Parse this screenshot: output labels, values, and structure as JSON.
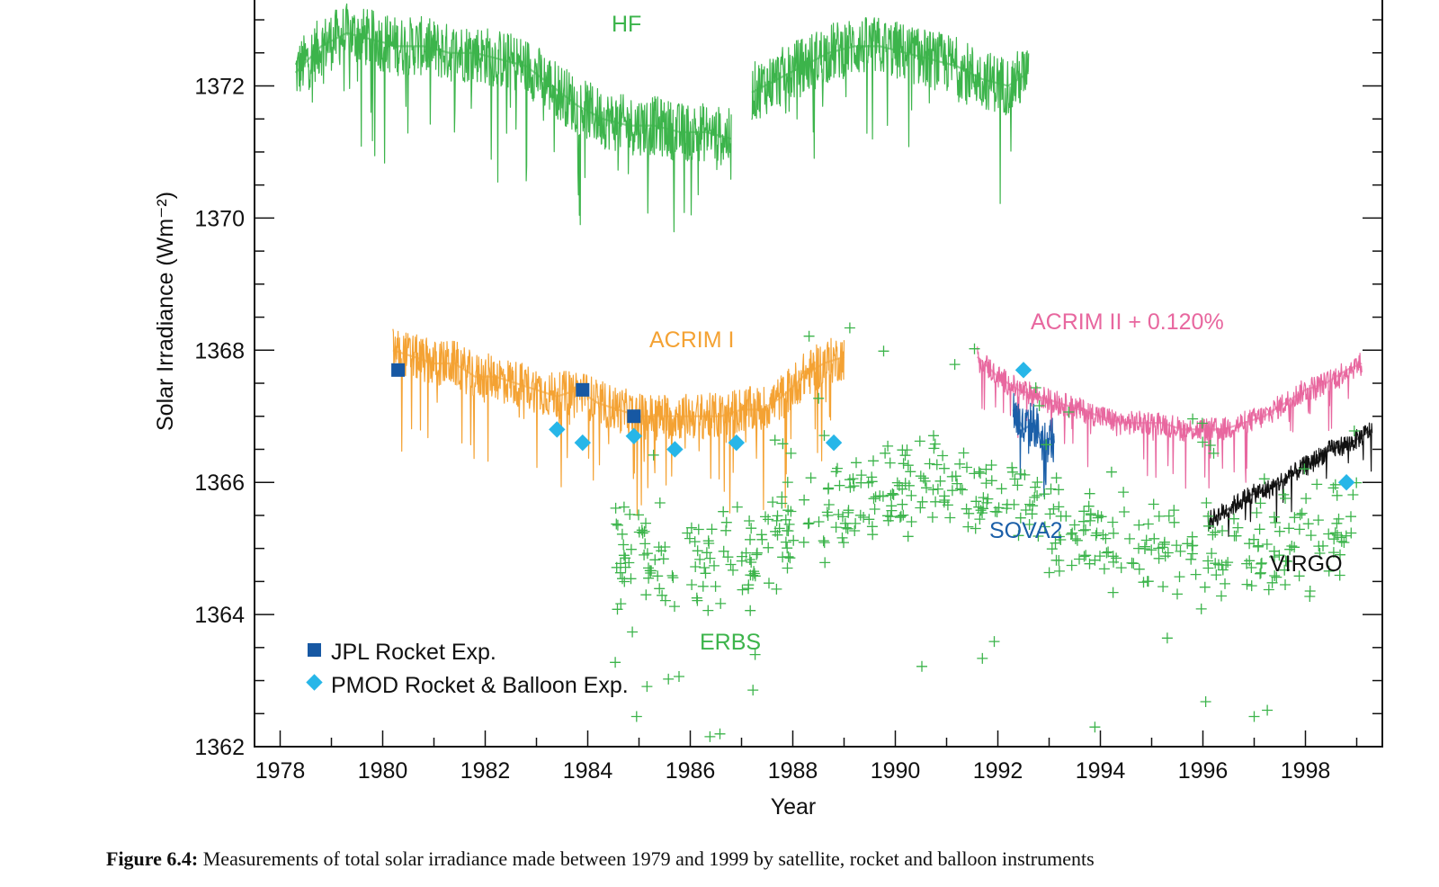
{
  "chart_data": {
    "type": "line",
    "title": "",
    "xlabel": "Year",
    "ylabel": "Solar Irradiance (Wm⁻²)",
    "xlim": [
      1977.5,
      1999.5
    ],
    "ylim": [
      1362,
      1373.3
    ],
    "x_ticks": [
      "1978",
      "1980",
      "1982",
      "1984",
      "1986",
      "1988",
      "1990",
      "1992",
      "1994",
      "1996",
      "1998"
    ],
    "y_ticks": [
      "1362",
      "1364",
      "1366",
      "1368",
      "1370",
      "1372"
    ],
    "colors": {
      "HF": "#3cb44b",
      "ERBS": "#3cb44b",
      "ACRIM I": "#f4a233",
      "ACRIM II": "#e8679f",
      "SOVA2": "#1b5fa8",
      "VIRGO": "#111111",
      "JPL": "#1758a3",
      "PMOD": "#27b6e8"
    },
    "series_labels": {
      "HF": "HF",
      "ACRIM I": "ACRIM I",
      "ACRIM II": "ACRIM II + 0.120%",
      "ERBS": "ERBS",
      "SOVA2": "SOVA2",
      "VIRGO": "VIRGO"
    },
    "series": [
      {
        "key": "HF",
        "kind": "line",
        "segments": [
          {
            "x": [
              1978.3,
              1978.8,
              1979.3,
              1979.8,
              1980.3,
              1980.8,
              1981.3,
              1981.8,
              1982.3,
              1982.8,
              1983.3,
              1983.8,
              1984.3,
              1984.8,
              1985.3,
              1985.8,
              1986.3,
              1986.8
            ],
            "y": [
              1372.2,
              1372.6,
              1372.8,
              1372.7,
              1372.6,
              1372.6,
              1372.5,
              1372.5,
              1372.4,
              1372.3,
              1372.0,
              1371.7,
              1371.5,
              1371.4,
              1371.4,
              1371.3,
              1371.3,
              1371.2
            ]
          },
          {
            "x": [
              1987.2,
              1987.7,
              1988.2,
              1988.7,
              1989.2,
              1989.7,
              1990.2,
              1990.7,
              1991.2,
              1991.7,
              1992.2,
              1992.6
            ],
            "y": [
              1371.9,
              1372.1,
              1372.3,
              1372.5,
              1372.6,
              1372.6,
              1372.5,
              1372.4,
              1372.3,
              1372.1,
              1372.0,
              1372.2
            ]
          }
        ]
      },
      {
        "key": "ACRIM I",
        "kind": "line",
        "segments": [
          {
            "x": [
              1980.2,
              1980.6,
              1981.0,
              1981.4,
              1981.8,
              1982.2,
              1982.6,
              1983.0,
              1983.4,
              1983.8,
              1984.2,
              1984.6,
              1985.0,
              1985.4,
              1985.8,
              1986.2,
              1986.6,
              1987.0,
              1987.4,
              1987.8,
              1988.2,
              1988.6,
              1989.0
            ],
            "y": [
              1368.0,
              1367.9,
              1367.8,
              1367.8,
              1367.6,
              1367.6,
              1367.5,
              1367.4,
              1367.3,
              1367.4,
              1367.2,
              1367.1,
              1367.0,
              1367.0,
              1367.0,
              1367.0,
              1367.0,
              1367.1,
              1367.1,
              1367.3,
              1367.6,
              1367.8,
              1367.9
            ]
          }
        ]
      },
      {
        "key": "ACRIM II",
        "kind": "line",
        "segments": [
          {
            "x": [
              1991.6,
              1992.0,
              1992.4,
              1992.8,
              1993.2,
              1993.6,
              1994.0,
              1994.4,
              1994.8,
              1995.2,
              1995.6,
              1996.0,
              1996.4,
              1996.8,
              1997.2,
              1997.6,
              1998.0,
              1998.4,
              1998.8,
              1999.1
            ],
            "y": [
              1367.9,
              1367.6,
              1367.4,
              1367.3,
              1367.2,
              1367.1,
              1367.0,
              1366.9,
              1366.9,
              1366.9,
              1366.8,
              1366.8,
              1366.8,
              1366.9,
              1367.0,
              1367.2,
              1367.4,
              1367.5,
              1367.7,
              1367.8
            ]
          }
        ]
      },
      {
        "key": "SOVA2",
        "kind": "line",
        "segments": [
          {
            "x": [
              1992.3,
              1992.5,
              1992.7,
              1992.9,
              1993.1
            ],
            "y": [
              1367.1,
              1366.8,
              1366.9,
              1366.6,
              1366.7
            ]
          }
        ]
      },
      {
        "key": "VIRGO",
        "kind": "line",
        "segments": [
          {
            "x": [
              1996.1,
              1996.5,
              1996.9,
              1997.3,
              1997.7,
              1998.1,
              1998.5,
              1998.9,
              1999.3
            ],
            "y": [
              1365.4,
              1365.6,
              1365.8,
              1365.9,
              1366.1,
              1366.3,
              1366.5,
              1366.6,
              1366.8
            ]
          }
        ]
      },
      {
        "key": "ERBS",
        "kind": "scatter",
        "x_range": [
          1984.5,
          1999.0
        ],
        "y_trend": [
          [
            1984.5,
            1364.9
          ],
          [
            1986.5,
            1364.7
          ],
          [
            1988.5,
            1365.4
          ],
          [
            1990.0,
            1366.0
          ],
          [
            1991.0,
            1366.0
          ],
          [
            1992.5,
            1365.6
          ],
          [
            1994.0,
            1365.1
          ],
          [
            1996.0,
            1364.9
          ],
          [
            1998.0,
            1365.1
          ],
          [
            1999.0,
            1365.4
          ]
        ]
      }
    ],
    "jpl_points": [
      {
        "x": 1980.3,
        "y": 1367.7
      },
      {
        "x": 1983.9,
        "y": 1367.4
      },
      {
        "x": 1984.9,
        "y": 1367.0
      }
    ],
    "pmod_points": [
      {
        "x": 1983.4,
        "y": 1366.8
      },
      {
        "x": 1983.9,
        "y": 1366.6
      },
      {
        "x": 1984.9,
        "y": 1366.7
      },
      {
        "x": 1985.7,
        "y": 1366.5
      },
      {
        "x": 1986.9,
        "y": 1366.6
      },
      {
        "x": 1988.8,
        "y": 1366.6
      },
      {
        "x": 1992.5,
        "y": 1367.7
      },
      {
        "x": 1998.8,
        "y": 1366.0
      }
    ],
    "legend": [
      {
        "label": "JPL Rocket Exp.",
        "marker": "square"
      },
      {
        "label": "PMOD Rocket & Balloon Exp.",
        "marker": "diamond"
      }
    ],
    "legend_position": "bottom-left",
    "grid": false
  },
  "caption": {
    "prefix": "Figure 6.4:",
    "text": " Measurements of total solar irradiance made between 1979 and 1999 by satellite, rocket and balloon instruments"
  }
}
